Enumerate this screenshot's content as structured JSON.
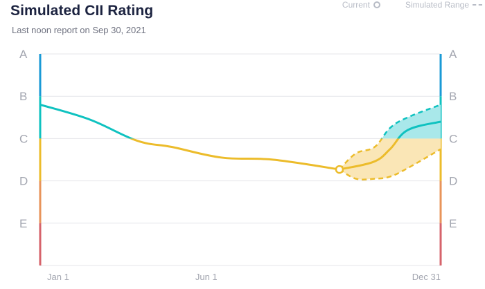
{
  "header": {
    "title": "Simulated CII Rating",
    "subtitle": "Last noon report on Sep 30, 2021"
  },
  "legend": {
    "current_label": "Current",
    "range_label": "Simulated Range"
  },
  "colors": {
    "A": "#1a9ad6",
    "B": "#0fc2c0",
    "C": "#ecbc2b",
    "D": "#e8945a",
    "E": "#d6636b",
    "grid": "#e4e5ea",
    "range_fill_yellow": "#fae6b6",
    "range_fill_teal": "#a9e8ea"
  },
  "chart_data": {
    "type": "area",
    "ratings": [
      "A",
      "B",
      "C",
      "D",
      "E"
    ],
    "x_ticks": [
      "Jan 1",
      "Jun 1",
      "Dec 31"
    ],
    "x_domain": [
      "2021-01-01",
      "2021-12-31"
    ],
    "y_scale_note": "rating score: 5 = A, 4 = B, 3 = C, 2 = D, 1 = E, 0 = bottom",
    "ylim": [
      0,
      5
    ],
    "current": {
      "date": "2021-09-30",
      "value": 2.27
    },
    "actual": {
      "name": "Current",
      "x": [
        "2021-01-01",
        "2021-02-15",
        "2021-03-30",
        "2021-05-01",
        "2021-06-15",
        "2021-08-01",
        "2021-09-30"
      ],
      "y": [
        3.8,
        3.45,
        2.95,
        2.8,
        2.55,
        2.5,
        2.27
      ]
    },
    "projected": {
      "x": [
        "2021-09-30",
        "2021-10-31",
        "2021-11-15",
        "2021-12-01",
        "2021-12-31"
      ],
      "y": [
        2.27,
        2.45,
        2.75,
        3.2,
        3.4
      ]
    },
    "range_upper": {
      "name": "Simulated Range",
      "x": [
        "2021-09-30",
        "2021-10-15",
        "2021-11-01",
        "2021-11-15",
        "2021-12-01",
        "2021-12-31"
      ],
      "y": [
        2.27,
        2.65,
        2.8,
        3.25,
        3.5,
        3.8
      ]
    },
    "range_lower": {
      "name": "Simulated Range",
      "x": [
        "2021-09-30",
        "2021-10-15",
        "2021-11-01",
        "2021-11-15",
        "2021-12-01",
        "2021-12-31"
      ],
      "y": [
        2.27,
        2.05,
        2.05,
        2.1,
        2.3,
        2.75
      ]
    },
    "grid": true,
    "legend_position": "top-right"
  }
}
